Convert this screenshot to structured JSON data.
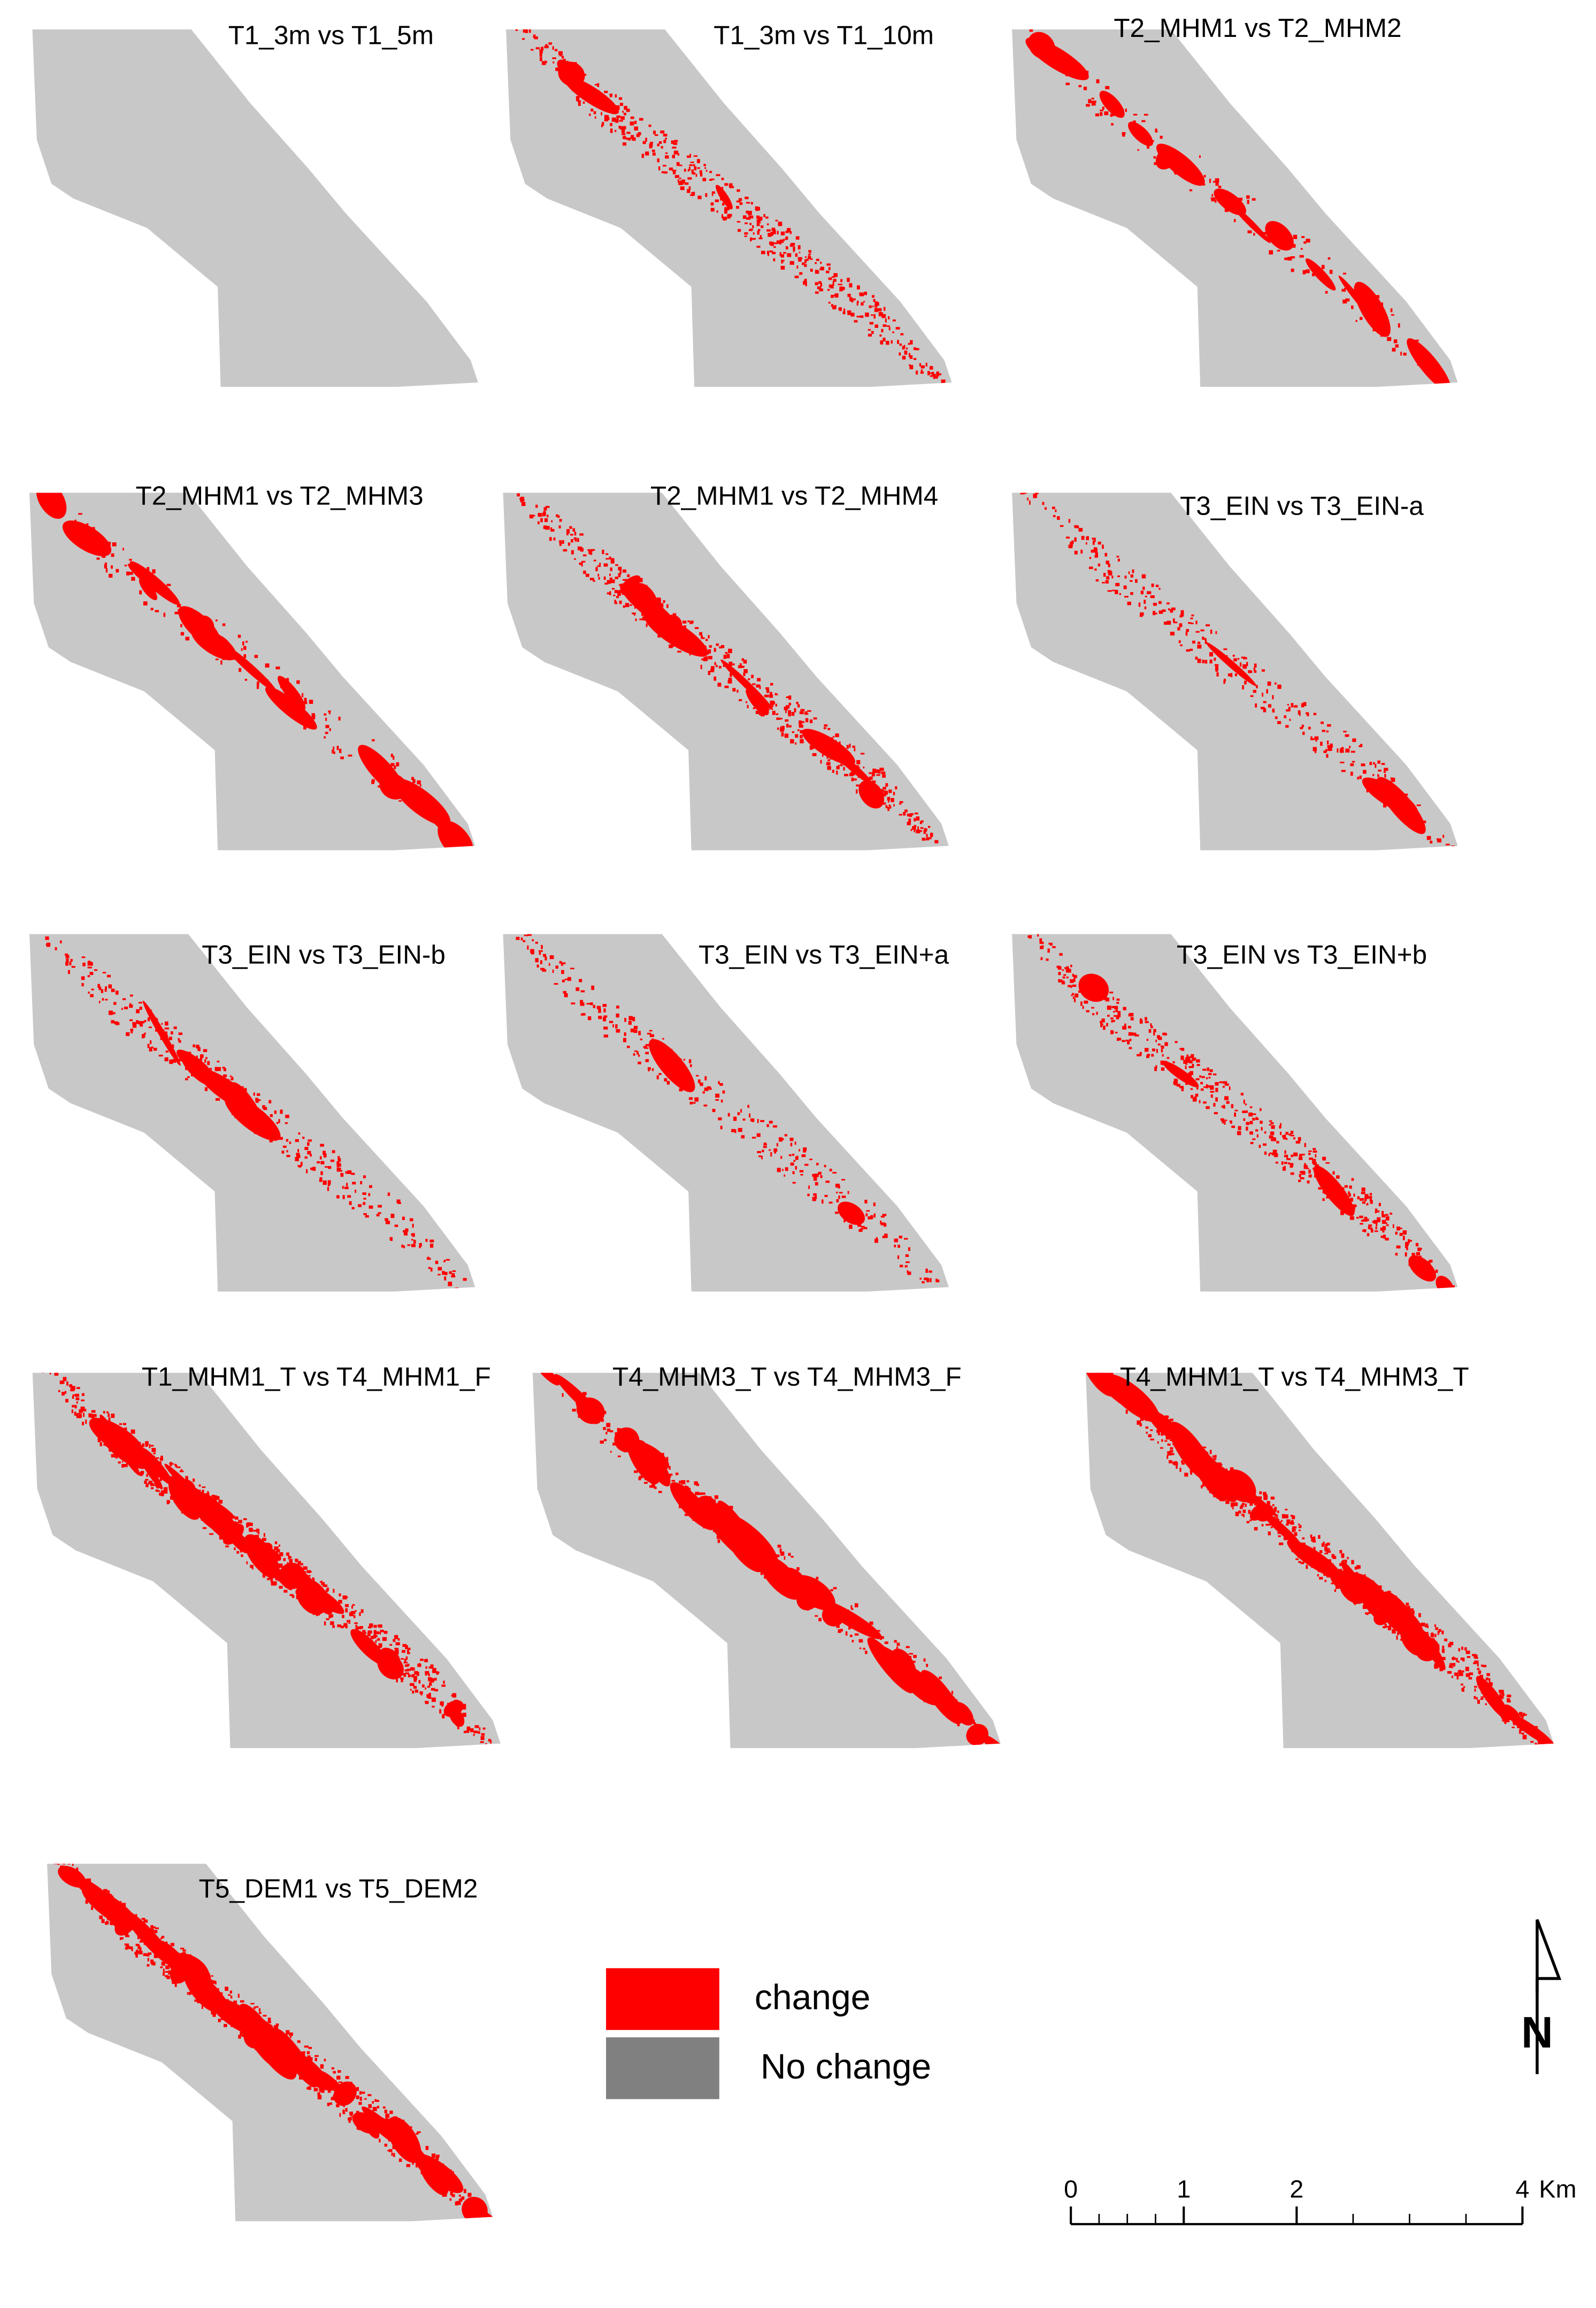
{
  "panels": [
    {
      "title": "T1_3m vs T1_5m"
    },
    {
      "title": "T1_3m vs T1_10m"
    },
    {
      "title": "T2_MHM1 vs T2_MHM2"
    },
    {
      "title": "T2_MHM1 vs T2_MHM3"
    },
    {
      "title": "T2_MHM1 vs T2_MHM4"
    },
    {
      "title": "T3_EIN vs T3_EIN-a"
    },
    {
      "title": "T3_EIN vs T3_EIN-b"
    },
    {
      "title": "T3_EIN vs T3_EIN+a"
    },
    {
      "title": "T3_EIN vs T3_EIN+b"
    },
    {
      "title": "T1_MHM1_T vs T4_MHM1_F"
    },
    {
      "title": "T4_MHM3_T vs T4_MHM3_F"
    },
    {
      "title": "T4_MHM1_T vs T4_MHM3_T"
    },
    {
      "title": "T5_DEM1 vs T5_DEM2"
    }
  ],
  "legend": {
    "items": [
      {
        "label": "change",
        "color": "#ff0000"
      },
      {
        "label": "No change",
        "color": "#808080"
      }
    ]
  },
  "north_arrow": {
    "label": "N"
  },
  "scale_bar": {
    "ticks": [
      0,
      1,
      2,
      4
    ],
    "unit": "Km"
  }
}
